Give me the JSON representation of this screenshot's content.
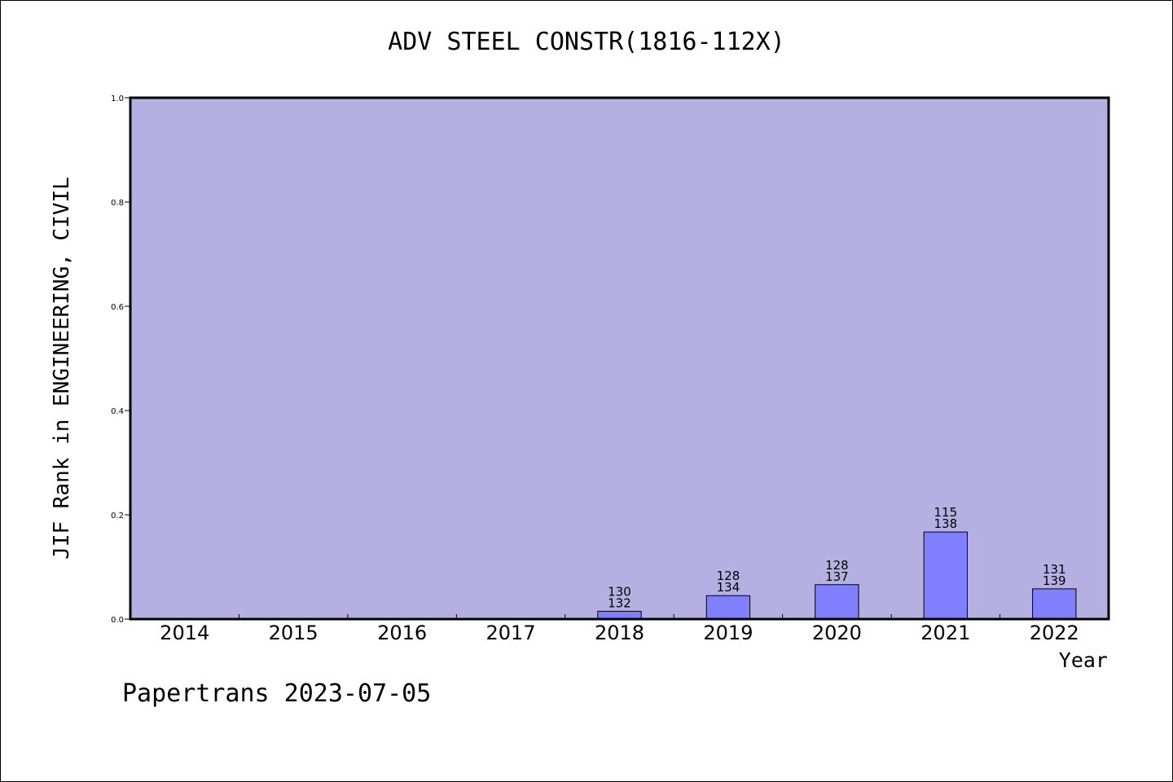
{
  "chart_data": {
    "type": "bar",
    "title": "ADV STEEL CONSTR(1816-112X)",
    "xlabel": "Year",
    "ylabel": "JIF Rank in ENGINEERING, CIVIL",
    "ylim": [
      0,
      1.0
    ],
    "yticks": [
      "0.0",
      "0.2",
      "0.4",
      "0.6",
      "0.8",
      "1.0"
    ],
    "categories": [
      "2014",
      "2015",
      "2016",
      "2017",
      "2018",
      "2019",
      "2020",
      "2021",
      "2022"
    ],
    "values": [
      null,
      null,
      null,
      null,
      0.015,
      0.045,
      0.066,
      0.167,
      0.058
    ],
    "labels_top": [
      "",
      "",
      "",
      "",
      "130",
      "128",
      "128",
      "115",
      "131"
    ],
    "labels_bottom": [
      "",
      "",
      "",
      "",
      "132",
      "134",
      "137",
      "138",
      "139"
    ],
    "grid": false,
    "colors": {
      "plot_background": "#b6b0e2",
      "bar_fill": "#8080ff",
      "bar_stroke": "#000000"
    }
  },
  "footer": "Papertrans 2023-07-05"
}
